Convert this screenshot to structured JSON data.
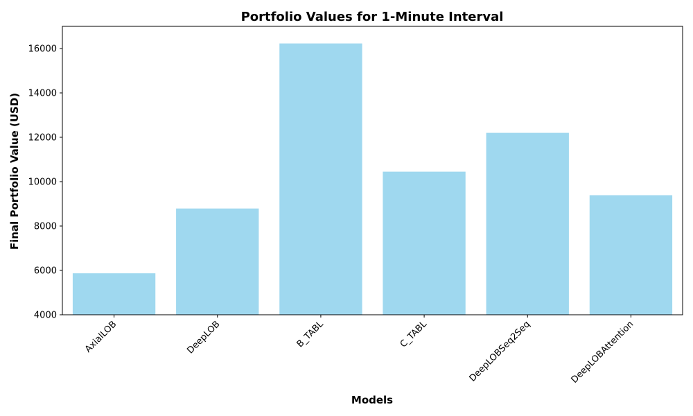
{
  "chart_data": {
    "type": "bar",
    "title": "Portfolio Values for 1-Minute Interval",
    "xlabel": "Models",
    "ylabel": "Final Portfolio Value (USD)",
    "categories": [
      "AxialLOB",
      "DeepLOB",
      "B_TABL",
      "C_TABL",
      "DeepLOBSeq2Seq",
      "DeepLOBAttention"
    ],
    "values": [
      5870,
      8790,
      16230,
      10450,
      12200,
      9390
    ],
    "ylim": [
      4000,
      17000
    ],
    "yticks": [
      4000,
      6000,
      8000,
      10000,
      12000,
      14000,
      16000
    ],
    "bar_color": "#87CEEB",
    "grid": false,
    "legend": "none"
  }
}
